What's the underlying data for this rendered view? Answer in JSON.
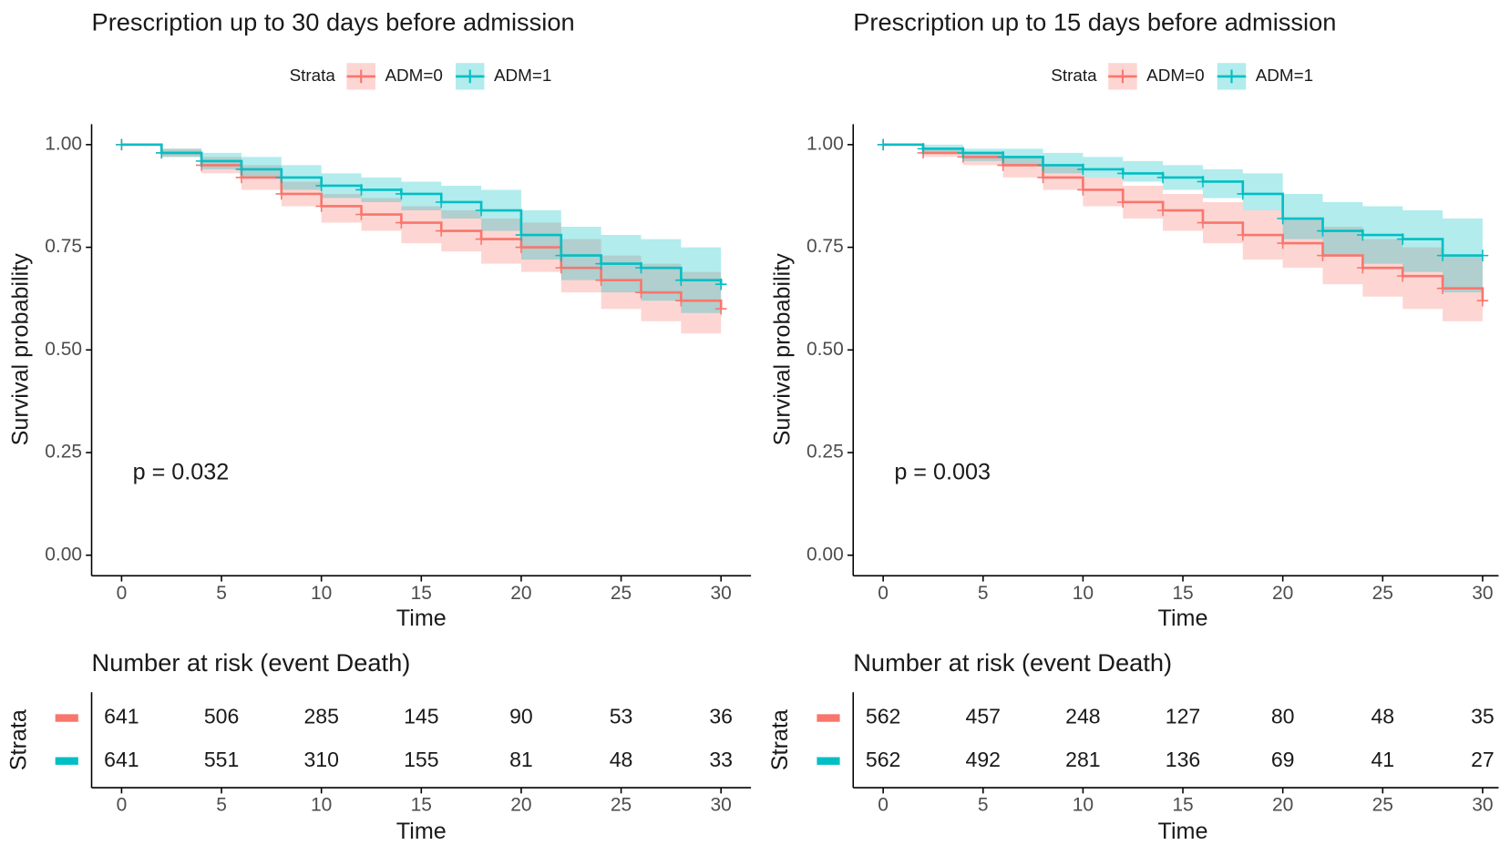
{
  "chart_data": [
    {
      "type": "step",
      "title": "Prescription up to 30 days before admission",
      "legend_title": "Strata",
      "x_label": "Time",
      "y_label": "Survival probability",
      "annotation": "p = 0.032",
      "xlim": [
        -1.5,
        31.5
      ],
      "xticks": [
        0,
        5,
        10,
        15,
        20,
        25,
        30
      ],
      "ylim": [
        -0.05,
        1.05
      ],
      "yticks": [
        {
          "value": 0,
          "label": "0.00"
        },
        {
          "value": 0.25,
          "label": "0.25"
        },
        {
          "value": 0.5,
          "label": "0.50"
        },
        {
          "value": 0.75,
          "label": "0.75"
        },
        {
          "value": 1,
          "label": "1.00"
        }
      ],
      "series": [
        {
          "name": "ADM=0",
          "color": "#f8766d",
          "x": [
            0,
            2,
            4,
            6,
            8,
            10,
            12,
            14,
            16,
            18,
            20,
            22,
            24,
            26,
            28,
            30
          ],
          "values": [
            1.0,
            0.98,
            0.95,
            0.92,
            0.88,
            0.85,
            0.83,
            0.81,
            0.79,
            0.77,
            0.75,
            0.7,
            0.67,
            0.64,
            0.62,
            0.6
          ],
          "lower": [
            1.0,
            0.97,
            0.93,
            0.89,
            0.85,
            0.81,
            0.79,
            0.76,
            0.74,
            0.71,
            0.69,
            0.64,
            0.6,
            0.57,
            0.54,
            0.52
          ],
          "upper": [
            1.0,
            0.99,
            0.97,
            0.95,
            0.91,
            0.88,
            0.87,
            0.85,
            0.84,
            0.82,
            0.81,
            0.77,
            0.73,
            0.71,
            0.69,
            0.67
          ]
        },
        {
          "name": "ADM=1",
          "color": "#00bfc4",
          "x": [
            0,
            2,
            4,
            6,
            8,
            10,
            12,
            14,
            16,
            18,
            20,
            22,
            24,
            26,
            28,
            30
          ],
          "values": [
            1.0,
            0.98,
            0.96,
            0.94,
            0.92,
            0.9,
            0.89,
            0.88,
            0.86,
            0.84,
            0.78,
            0.73,
            0.71,
            0.7,
            0.67,
            0.66
          ],
          "lower": [
            1.0,
            0.97,
            0.94,
            0.92,
            0.89,
            0.87,
            0.86,
            0.84,
            0.82,
            0.79,
            0.72,
            0.67,
            0.64,
            0.62,
            0.59,
            0.57
          ],
          "upper": [
            1.0,
            0.99,
            0.98,
            0.97,
            0.95,
            0.93,
            0.92,
            0.91,
            0.9,
            0.89,
            0.84,
            0.8,
            0.78,
            0.77,
            0.75,
            0.75
          ]
        }
      ],
      "risk_table": {
        "title": "Number at risk (event Death)",
        "y_label": "Strata",
        "x_label": "Time",
        "x": [
          0,
          5,
          10,
          15,
          20,
          25,
          30
        ],
        "series": [
          {
            "values": [
              641,
              506,
              285,
              145,
              90,
              53,
              36
            ]
          },
          {
            "values": [
              641,
              551,
              310,
              155,
              81,
              48,
              33
            ]
          }
        ]
      }
    },
    {
      "type": "step",
      "title": "Prescription up to 15 days before admission",
      "legend_title": "Strata",
      "x_label": "Time",
      "y_label": "Survival probability",
      "annotation": "p = 0.003",
      "xlim": [
        -1.5,
        30.8
      ],
      "xticks": [
        0,
        5,
        10,
        15,
        20,
        25,
        30
      ],
      "ylim": [
        -0.05,
        1.05
      ],
      "yticks": [
        {
          "value": 0,
          "label": "0.00"
        },
        {
          "value": 0.25,
          "label": "0.25"
        },
        {
          "value": 0.5,
          "label": "0.50"
        },
        {
          "value": 0.75,
          "label": "0.75"
        },
        {
          "value": 1,
          "label": "1.00"
        }
      ],
      "series": [
        {
          "name": "ADM=0",
          "color": "#f8766d",
          "x": [
            0,
            2,
            4,
            6,
            8,
            10,
            12,
            14,
            16,
            18,
            20,
            22,
            24,
            26,
            28,
            30
          ],
          "values": [
            1.0,
            0.98,
            0.97,
            0.95,
            0.92,
            0.89,
            0.86,
            0.84,
            0.81,
            0.78,
            0.76,
            0.73,
            0.7,
            0.68,
            0.65,
            0.62
          ],
          "lower": [
            1.0,
            0.97,
            0.95,
            0.92,
            0.89,
            0.85,
            0.82,
            0.79,
            0.76,
            0.72,
            0.7,
            0.66,
            0.63,
            0.6,
            0.57,
            0.54
          ],
          "upper": [
            1.0,
            0.99,
            0.98,
            0.97,
            0.95,
            0.92,
            0.9,
            0.88,
            0.86,
            0.84,
            0.82,
            0.8,
            0.77,
            0.75,
            0.73,
            0.7
          ]
        },
        {
          "name": "ADM=1",
          "color": "#00bfc4",
          "x": [
            0,
            2,
            4,
            6,
            8,
            10,
            12,
            14,
            16,
            18,
            20,
            22,
            24,
            26,
            28,
            30
          ],
          "values": [
            1.0,
            0.99,
            0.98,
            0.97,
            0.95,
            0.94,
            0.93,
            0.92,
            0.91,
            0.88,
            0.82,
            0.79,
            0.78,
            0.77,
            0.73,
            0.73
          ],
          "lower": [
            1.0,
            0.98,
            0.96,
            0.95,
            0.93,
            0.92,
            0.91,
            0.89,
            0.87,
            0.84,
            0.77,
            0.73,
            0.71,
            0.69,
            0.64,
            0.63
          ],
          "upper": [
            1.0,
            1.0,
            0.99,
            0.99,
            0.98,
            0.97,
            0.96,
            0.95,
            0.94,
            0.93,
            0.88,
            0.86,
            0.85,
            0.84,
            0.82,
            0.82
          ]
        }
      ],
      "risk_table": {
        "title": "Number at risk (event Death)",
        "y_label": "Strata",
        "x_label": "Time",
        "x": [
          0,
          5,
          10,
          15,
          20,
          25,
          30
        ],
        "series": [
          {
            "values": [
              562,
              457,
              248,
              127,
              80,
              48,
              35
            ]
          },
          {
            "values": [
              562,
              492,
              281,
              136,
              69,
              41,
              27
            ]
          }
        ]
      }
    }
  ]
}
